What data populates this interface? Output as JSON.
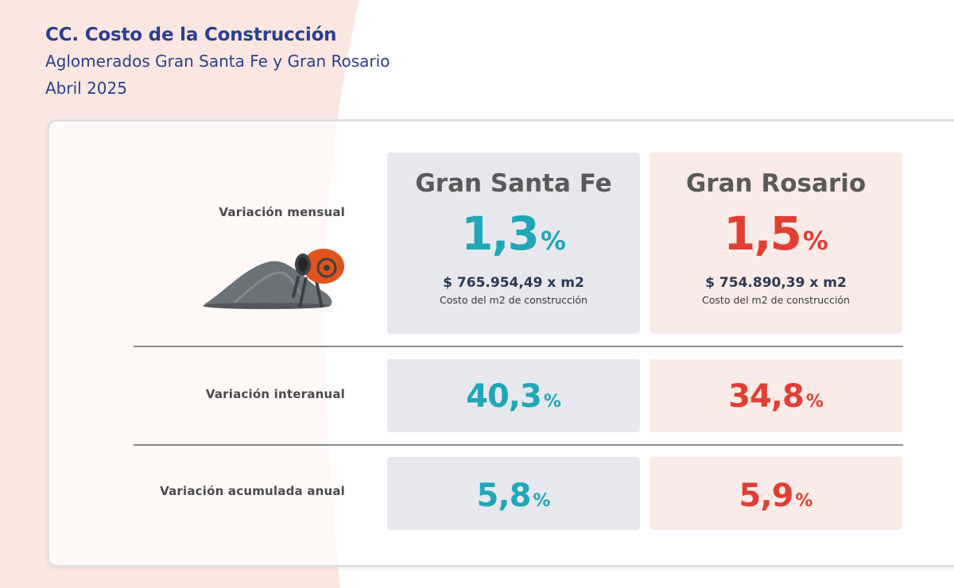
{
  "header": {
    "title": "CC. Costo de la Construcción",
    "subtitle": "Aglomerados Gran Santa Fe y Gran Rosario",
    "period": "Abril 2025"
  },
  "rows": {
    "mensual": "Variación mensual",
    "interanual": "Variación interanual",
    "acumulada": "Variación acumulada anual"
  },
  "santa_fe": {
    "name": "Gran Santa Fe",
    "mensual": "1,3",
    "cost": "$ 765.954,49 x m2",
    "cost_label": "Costo del m2 de construcción",
    "interanual": "40,3",
    "acumulada": "5,8"
  },
  "rosario": {
    "name": "Gran Rosario",
    "mensual": "1,5",
    "cost": "$ 754.890,39 x m2",
    "cost_label": "Costo del m2 de construcción",
    "interanual": "34,8",
    "acumulada": "5,9"
  },
  "unit": "%",
  "colors": {
    "title": "#2a3f8f",
    "santa_fe_accent": "#1fa7b8",
    "rosario_accent": "#e03f32",
    "santa_fe_box": "#e6e8ed",
    "rosario_box": "#fbebe8",
    "background_shape": "#fbe7e1"
  },
  "illustration": "cement-mixer-and-sand-pile-icon"
}
